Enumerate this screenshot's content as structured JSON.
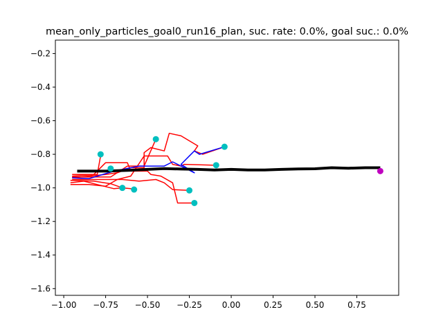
{
  "chart_data": {
    "type": "line",
    "title": "mean_only_particles_goal0_run16_plan, suc. rate: 0.0%, goal suc.: 0.0%",
    "xlabel": "",
    "ylabel": "",
    "xlim": [
      -1.05,
      1.0
    ],
    "ylim": [
      -1.64,
      -0.12
    ],
    "xticks": [
      -1.0,
      -0.75,
      -0.5,
      -0.25,
      0.0,
      0.25,
      0.5,
      0.75
    ],
    "xtick_labels": [
      "−1.00",
      "−0.75",
      "−0.50",
      "−0.25",
      "0.00",
      "0.25",
      "0.50",
      "0.75"
    ],
    "yticks": [
      -0.2,
      -0.4,
      -0.6,
      -0.8,
      -1.0,
      -1.2,
      -1.4,
      -1.6
    ],
    "ytick_labels": [
      "−0.2",
      "−0.4",
      "−0.6",
      "−0.8",
      "−1.0",
      "−1.2",
      "−1.4",
      "−1.6"
    ],
    "grid": false,
    "colors": {
      "particle": "#ff0000",
      "best": "#0000ff",
      "mean": "#000000",
      "endpoint": "#00bfbf",
      "goal": "#bf00bf"
    },
    "series": [
      {
        "role": "particle",
        "points": [
          [
            -0.95,
            -0.935
          ],
          [
            -0.72,
            -0.935
          ],
          [
            -0.62,
            -0.87
          ],
          [
            -0.52,
            -0.87
          ],
          [
            -0.45,
            -0.71
          ]
        ]
      },
      {
        "role": "particle",
        "points": [
          [
            -0.95,
            -0.94
          ],
          [
            -0.75,
            -0.92
          ],
          [
            -0.68,
            -0.91
          ],
          [
            -0.6,
            -0.88
          ],
          [
            -0.52,
            -0.88
          ],
          [
            -0.52,
            -0.79
          ],
          [
            -0.48,
            -0.76
          ],
          [
            -0.4,
            -0.78
          ],
          [
            -0.37,
            -0.675
          ],
          [
            -0.3,
            -0.69
          ],
          [
            -0.2,
            -0.75
          ],
          [
            -0.22,
            -0.78
          ],
          [
            -0.17,
            -0.8
          ],
          [
            -0.04,
            -0.755
          ]
        ]
      },
      {
        "role": "particle",
        "points": [
          [
            -0.95,
            -0.95
          ],
          [
            -0.8,
            -0.95
          ],
          [
            -0.65,
            -0.95
          ],
          [
            -0.55,
            -0.96
          ],
          [
            -0.45,
            -0.95
          ],
          [
            -0.4,
            -0.97
          ],
          [
            -0.35,
            -1.01
          ],
          [
            -0.25,
            -1.015
          ]
        ]
      },
      {
        "role": "particle",
        "points": [
          [
            -0.96,
            -0.955
          ],
          [
            -0.82,
            -0.96
          ],
          [
            -0.72,
            -0.975
          ],
          [
            -0.65,
            -1.0
          ],
          [
            -0.6,
            -1.005
          ],
          [
            -0.58,
            -1.01
          ]
        ]
      },
      {
        "role": "particle",
        "points": [
          [
            -0.96,
            -0.97
          ],
          [
            -0.88,
            -0.96
          ],
          [
            -0.8,
            -0.98
          ],
          [
            -0.7,
            -1.005
          ],
          [
            -0.65,
            -1.0
          ]
        ]
      },
      {
        "role": "particle",
        "points": [
          [
            -0.95,
            -0.93
          ],
          [
            -0.8,
            -0.92
          ],
          [
            -0.78,
            -0.81
          ]
        ]
      },
      {
        "role": "particle",
        "points": [
          [
            -0.95,
            -0.92
          ],
          [
            -0.82,
            -0.92
          ],
          [
            -0.75,
            -0.85
          ],
          [
            -0.62,
            -0.85
          ],
          [
            -0.6,
            -0.9
          ],
          [
            -0.5,
            -0.9
          ],
          [
            -0.48,
            -0.92
          ],
          [
            -0.42,
            -0.93
          ],
          [
            -0.35,
            -0.97
          ],
          [
            -0.32,
            -1.09
          ],
          [
            -0.22,
            -1.09
          ]
        ]
      },
      {
        "role": "particle",
        "points": [
          [
            -0.96,
            -0.98
          ],
          [
            -0.85,
            -0.98
          ],
          [
            -0.75,
            -0.99
          ],
          [
            -0.68,
            -0.95
          ],
          [
            -0.6,
            -0.93
          ],
          [
            -0.52,
            -0.81
          ],
          [
            -0.38,
            -0.81
          ],
          [
            -0.35,
            -0.86
          ],
          [
            -0.3,
            -0.87
          ],
          [
            -0.28,
            -0.86
          ],
          [
            -0.1,
            -0.865
          ]
        ]
      },
      {
        "role": "best",
        "points": [
          [
            -0.95,
            -0.94
          ],
          [
            -0.85,
            -0.945
          ],
          [
            -0.7,
            -0.9
          ],
          [
            -0.55,
            -0.87
          ],
          [
            -0.4,
            -0.87
          ],
          [
            -0.35,
            -0.845
          ],
          [
            -0.22,
            -0.91
          ],
          [
            -0.3,
            -0.86
          ],
          [
            -0.22,
            -0.78
          ],
          [
            -0.19,
            -0.8
          ],
          [
            -0.04,
            -0.755
          ]
        ]
      },
      {
        "role": "mean",
        "points": [
          [
            -0.92,
            -0.9
          ],
          [
            -0.75,
            -0.9
          ],
          [
            -0.6,
            -0.895
          ],
          [
            -0.5,
            -0.89
          ],
          [
            -0.4,
            -0.885
          ],
          [
            -0.3,
            -0.888
          ],
          [
            -0.2,
            -0.89
          ],
          [
            -0.1,
            -0.893
          ],
          [
            0.0,
            -0.89
          ],
          [
            0.1,
            -0.893
          ],
          [
            0.2,
            -0.893
          ],
          [
            0.3,
            -0.89
          ],
          [
            0.4,
            -0.887
          ],
          [
            0.5,
            -0.886
          ],
          [
            0.6,
            -0.88
          ],
          [
            0.7,
            -0.883
          ],
          [
            0.8,
            -0.88
          ],
          [
            0.89,
            -0.88
          ]
        ]
      }
    ],
    "endpoints": [
      [
        -0.45,
        -0.71
      ],
      [
        -0.78,
        -0.8
      ],
      [
        -0.72,
        -0.885
      ],
      [
        -0.65,
        -1.0
      ],
      [
        -0.58,
        -1.01
      ],
      [
        -0.25,
        -1.015
      ],
      [
        -0.22,
        -1.09
      ],
      [
        -0.09,
        -0.865
      ],
      [
        -0.04,
        -0.755
      ]
    ],
    "goal": [
      0.89,
      -0.9
    ]
  }
}
